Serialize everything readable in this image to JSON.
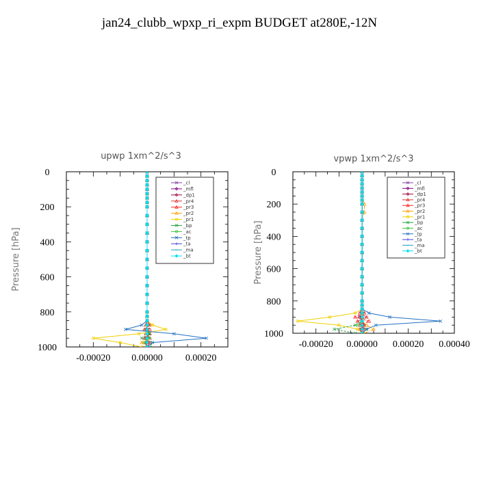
{
  "figure_title": "jan24_clubb_wpxp_ri_expm  BUDGET at280E,-12N",
  "chart_data": [
    {
      "type": "line",
      "title": "upwp   1xm^2/s^3",
      "ylabel": "Pressure [hPa]",
      "xlabel": "",
      "xlim": [
        -0.0003,
        0.0003
      ],
      "ylim": [
        1000,
        0
      ],
      "xtick_values": [
        -0.0002,
        0.0,
        0.0002
      ],
      "xtick_labels": [
        "-0.00020",
        "0.00000",
        "0.00020"
      ],
      "ytick_values": [
        0,
        200,
        400,
        600,
        800,
        1000
      ],
      "ytick_labels": [
        "0",
        "200",
        "400",
        "600",
        "800",
        "1000"
      ],
      "pressure_levels": [
        0,
        25,
        50,
        75,
        100,
        125,
        150,
        175,
        200,
        250,
        300,
        350,
        400,
        450,
        500,
        550,
        600,
        650,
        700,
        750,
        800,
        825,
        850,
        875,
        900,
        925,
        950,
        975,
        1000
      ],
      "series": [
        {
          "name": "_cl",
          "color": "#8040a0",
          "values": [
            0,
            0,
            0,
            0,
            0,
            0,
            0,
            0,
            0,
            0,
            0,
            0,
            0,
            0,
            0,
            0,
            0,
            0,
            0,
            0,
            0,
            0,
            0,
            0,
            0,
            0,
            0,
            0,
            0
          ]
        },
        {
          "name": "_mfl",
          "color": "#800080",
          "values": [
            0,
            0,
            0,
            0,
            0,
            0,
            0,
            0,
            0,
            0,
            0,
            0,
            0,
            0,
            0,
            0,
            0,
            0,
            0,
            0,
            0,
            0,
            0,
            0,
            0,
            0,
            0,
            0,
            0
          ]
        },
        {
          "name": "_dp1",
          "color": "#a00040",
          "values": [
            0,
            0,
            0,
            0,
            0,
            0,
            0,
            0,
            0,
            0,
            0,
            0,
            0,
            0,
            0,
            0,
            0,
            0,
            0,
            0,
            0,
            0,
            0,
            0,
            0,
            5e-06,
            0,
            -5e-06,
            0
          ]
        },
        {
          "name": "_pr4",
          "color": "#e03030",
          "values": [
            0,
            0,
            0,
            0,
            0,
            0,
            0,
            0,
            0,
            0,
            0,
            0,
            0,
            0,
            0,
            0,
            0,
            0,
            0,
            0,
            0,
            0,
            0,
            1e-05,
            -1e-05,
            1e-05,
            -1e-05,
            1e-05,
            0
          ]
        },
        {
          "name": "_pr3",
          "color": "#ff2020",
          "values": [
            0,
            0,
            0,
            0,
            0,
            0,
            0,
            0,
            0,
            0,
            0,
            0,
            0,
            0,
            0,
            0,
            0,
            0,
            0,
            0,
            0,
            0,
            0,
            -5e-06,
            1e-05,
            -5e-06,
            1e-05,
            -5e-06,
            0
          ]
        },
        {
          "name": "_pr2",
          "color": "#ffa000",
          "values": [
            0,
            0,
            0,
            0,
            0,
            0,
            0,
            0,
            0,
            0,
            0,
            0,
            0,
            0,
            0,
            0,
            0,
            0,
            0,
            0,
            0,
            0,
            0,
            0,
            0,
            0,
            0,
            -2e-05,
            0
          ]
        },
        {
          "name": "_pr1",
          "color": "#f0d000",
          "values": [
            0,
            0,
            0,
            0,
            0,
            0,
            0,
            0,
            0,
            0,
            0,
            0,
            0,
            0,
            0,
            0,
            0,
            0,
            0,
            0,
            0,
            0,
            0,
            2e-05,
            7e-05,
            -3e-05,
            -0.0002,
            -0.0001,
            -2e-05
          ]
        },
        {
          "name": "_bp",
          "color": "#20a040",
          "values": [
            0,
            0,
            0,
            0,
            0,
            0,
            0,
            0,
            0,
            0,
            0,
            0,
            0,
            0,
            0,
            0,
            0,
            0,
            0,
            0,
            0,
            0,
            0,
            0,
            0,
            1e-05,
            -2e-05,
            2e-05,
            1e-05
          ]
        },
        {
          "name": "_ac",
          "color": "#40c040",
          "values": [
            0,
            0,
            0,
            0,
            0,
            0,
            0,
            0,
            0,
            0,
            0,
            0,
            0,
            0,
            0,
            0,
            0,
            0,
            0,
            0,
            0,
            0,
            0,
            0,
            0,
            0,
            1e-05,
            -1e-05,
            0
          ]
        },
        {
          "name": "_tp",
          "color": "#2070c0",
          "values": [
            0,
            0,
            0,
            0,
            0,
            0,
            0,
            0,
            0,
            0,
            0,
            0,
            0,
            0,
            0,
            0,
            0,
            0,
            0,
            0,
            0,
            0,
            0,
            -2e-05,
            -8e-05,
            0.0001,
            0.00022,
            2e-05,
            0
          ]
        },
        {
          "name": "_ta",
          "color": "#4040e0",
          "values": [
            0,
            0,
            0,
            0,
            0,
            0,
            0,
            0,
            0,
            0,
            0,
            0,
            0,
            0,
            0,
            0,
            0,
            0,
            0,
            0,
            0,
            0,
            0,
            0,
            0,
            0,
            0,
            0,
            0
          ]
        },
        {
          "name": "_ma",
          "color": "#20a0c0",
          "values": [
            0,
            0,
            0,
            0,
            0,
            0,
            0,
            0,
            0,
            0,
            0,
            0,
            0,
            0,
            0,
            0,
            0,
            0,
            0,
            0,
            0,
            0,
            0,
            0,
            0,
            0,
            0,
            0,
            0
          ]
        },
        {
          "name": "_bt",
          "color": "#00e0f0",
          "values": [
            0,
            0,
            0,
            0,
            0,
            0,
            0,
            0,
            0,
            0,
            0,
            0,
            0,
            0,
            0,
            0,
            0,
            0,
            0,
            0,
            0,
            0,
            0,
            0,
            0,
            0,
            0,
            0,
            0
          ]
        }
      ]
    },
    {
      "type": "line",
      "title": "vpwp   1xm^2/s^3",
      "ylabel": "Pressure [hPa]",
      "xlabel": "",
      "xlim": [
        -0.0003,
        0.0004
      ],
      "ylim": [
        1000,
        0
      ],
      "xtick_values": [
        -0.0002,
        0.0,
        0.0002,
        0.0004
      ],
      "xtick_labels": [
        "-0.00020",
        "0.00000",
        "0.00020",
        "0.00040"
      ],
      "ytick_values": [
        0,
        200,
        400,
        600,
        800,
        1000
      ],
      "ytick_labels": [
        "0",
        "200",
        "400",
        "600",
        "800",
        "1000"
      ],
      "pressure_levels": [
        0,
        25,
        50,
        75,
        100,
        125,
        150,
        175,
        200,
        250,
        300,
        350,
        400,
        450,
        500,
        550,
        600,
        650,
        700,
        750,
        800,
        825,
        850,
        875,
        900,
        925,
        950,
        975,
        1000
      ],
      "series": [
        {
          "name": "_cl",
          "color": "#8040a0",
          "values": [
            0,
            0,
            0,
            0,
            0,
            0,
            0,
            0,
            0,
            0,
            0,
            0,
            0,
            0,
            0,
            0,
            0,
            0,
            0,
            0,
            0,
            0,
            0,
            0,
            0,
            0,
            0,
            0,
            0
          ]
        },
        {
          "name": "_mfl",
          "color": "#800080",
          "values": [
            0,
            0,
            0,
            0,
            0,
            0,
            0,
            0,
            0,
            0,
            0,
            0,
            0,
            0,
            0,
            0,
            0,
            0,
            0,
            0,
            0,
            0,
            0,
            0,
            0,
            0,
            0,
            0,
            0
          ]
        },
        {
          "name": "_dp1",
          "color": "#a00040",
          "values": [
            0,
            0,
            0,
            0,
            0,
            0,
            0,
            0,
            0,
            0,
            0,
            0,
            0,
            0,
            0,
            0,
            0,
            0,
            0,
            0,
            0,
            0,
            0,
            0,
            -1e-05,
            0,
            1e-05,
            0,
            0
          ]
        },
        {
          "name": "_pr4",
          "color": "#e03030",
          "values": [
            0,
            0,
            0,
            0,
            0,
            0,
            0,
            0,
            0,
            0,
            0,
            0,
            0,
            0,
            0,
            0,
            0,
            0,
            0,
            0,
            0,
            0,
            0,
            -1e-05,
            2e-05,
            -2e-05,
            1e-05,
            -1e-05,
            0
          ]
        },
        {
          "name": "_pr3",
          "color": "#ff2020",
          "values": [
            0,
            0,
            0,
            0,
            0,
            0,
            0,
            0,
            0,
            0,
            0,
            0,
            0,
            0,
            0,
            0,
            0,
            0,
            0,
            0,
            0,
            0,
            0,
            1e-05,
            -3e-05,
            3e-05,
            -1e-05,
            1e-05,
            0
          ]
        },
        {
          "name": "_pr2",
          "color": "#ffa000",
          "values": [
            0,
            0,
            0,
            0,
            0,
            0,
            0,
            0,
            1e-05,
            1e-05,
            0,
            0,
            0,
            0,
            0,
            0,
            0,
            0,
            0,
            0,
            0,
            0,
            0,
            0,
            0,
            0,
            2e-05,
            5e-05,
            1e-05
          ]
        },
        {
          "name": "_pr1",
          "color": "#f0d000",
          "values": [
            0,
            0,
            0,
            0,
            0,
            0,
            0,
            0,
            0,
            0,
            0,
            0,
            0,
            0,
            0,
            0,
            0,
            0,
            0,
            0,
            0,
            0,
            0,
            -3e-05,
            -0.00014,
            -0.00028,
            -0.0001,
            -2e-05,
            0
          ]
        },
        {
          "name": "_bp",
          "color": "#20a040",
          "values": [
            0,
            0,
            0,
            0,
            0,
            0,
            0,
            0,
            0,
            0,
            0,
            0,
            0,
            0,
            0,
            0,
            0,
            0,
            0,
            0,
            0,
            0,
            0,
            0,
            0,
            0,
            -3e-05,
            -0.00012,
            -3e-05
          ]
        },
        {
          "name": "_ac",
          "color": "#40c040",
          "values": [
            0,
            0,
            0,
            0,
            0,
            0,
            0,
            0,
            0,
            0,
            0,
            0,
            0,
            0,
            0,
            0,
            0,
            0,
            0,
            0,
            0,
            0,
            0,
            0,
            0,
            0,
            -2e-05,
            2e-05,
            0
          ]
        },
        {
          "name": "_tp",
          "color": "#2070c0",
          "values": [
            0,
            0,
            0,
            0,
            0,
            0,
            0,
            0,
            0,
            0,
            0,
            0,
            0,
            0,
            0,
            0,
            0,
            0,
            0,
            0,
            0,
            0,
            0,
            3e-05,
            0.00012,
            0.00034,
            6e-05,
            2e-05,
            0
          ]
        },
        {
          "name": "_ta",
          "color": "#4040e0",
          "values": [
            0,
            0,
            0,
            0,
            0,
            0,
            0,
            0,
            0,
            0,
            0,
            0,
            0,
            0,
            0,
            0,
            0,
            0,
            0,
            0,
            0,
            0,
            0,
            0,
            0,
            0,
            0,
            0,
            0
          ]
        },
        {
          "name": "_ma",
          "color": "#20a0c0",
          "values": [
            0,
            0,
            0,
            0,
            0,
            0,
            0,
            0,
            0,
            0,
            0,
            0,
            0,
            0,
            0,
            0,
            0,
            0,
            0,
            0,
            0,
            0,
            0,
            0,
            0,
            0,
            0,
            0,
            0
          ]
        },
        {
          "name": "_bt",
          "color": "#00e0f0",
          "values": [
            0,
            0,
            0,
            0,
            0,
            0,
            0,
            0,
            0,
            0,
            0,
            0,
            0,
            0,
            0,
            0,
            0,
            0,
            0,
            0,
            0,
            0,
            0,
            0,
            0,
            0,
            0,
            0,
            0
          ]
        }
      ]
    }
  ]
}
